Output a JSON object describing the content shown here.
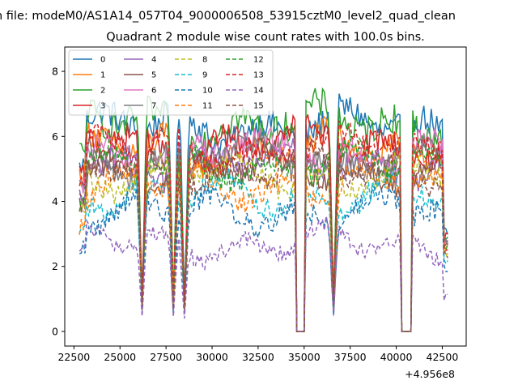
{
  "chart_data": {
    "type": "line",
    "title_line1": "n file: modeM0/AS1A14_057T04_9000006508_53915cztM0_level2_quad_clean",
    "title_line2": "Quadrant 2 module wise count rates with 100.0s bins.",
    "xlabel": "",
    "ylabel": "",
    "x_offset_label": "+4.956e8",
    "xlim": [
      22000,
      43800
    ],
    "ylim": [
      -0.45,
      8.75
    ],
    "x_ticks": [
      22500,
      25000,
      27500,
      30000,
      32500,
      35000,
      37500,
      40000,
      42500
    ],
    "y_ticks": [
      0,
      2,
      4,
      6,
      8
    ],
    "x_tick_labels": [
      "22500",
      "25000",
      "27500",
      "30000",
      "32500",
      "35000",
      "37500",
      "40000",
      "42500"
    ],
    "y_tick_labels": [
      "0",
      "2",
      "4",
      "6",
      "8"
    ],
    "legend_position": "upper-left",
    "legend_columns": 4,
    "x_start": 22800,
    "x_step": 100,
    "gap_intervals": [
      [
        34600,
        35000
      ],
      [
        40300,
        40800
      ]
    ],
    "dip_times": [
      26200,
      27900,
      28500,
      36600
    ],
    "series": [
      {
        "name": "0",
        "color": "#1f77b4",
        "style": "solid",
        "level": 6.3,
        "amplitude": 0.45
      },
      {
        "name": "1",
        "color": "#ff7f0e",
        "style": "solid",
        "level": 5.6,
        "amplitude": 0.45
      },
      {
        "name": "2",
        "color": "#2ca02c",
        "style": "solid",
        "level": 6.4,
        "amplitude": 0.5
      },
      {
        "name": "3",
        "color": "#d62728",
        "style": "solid",
        "level": 5.8,
        "amplitude": 0.4
      },
      {
        "name": "4",
        "color": "#9467bd",
        "style": "solid",
        "level": 5.2,
        "amplitude": 0.4
      },
      {
        "name": "5",
        "color": "#8c564b",
        "style": "solid",
        "level": 5.0,
        "amplitude": 0.4
      },
      {
        "name": "6",
        "color": "#e377c2",
        "style": "solid",
        "level": 5.5,
        "amplitude": 0.4
      },
      {
        "name": "7",
        "color": "#7f7f7f",
        "style": "solid",
        "level": 5.3,
        "amplitude": 0.4
      },
      {
        "name": "8",
        "color": "#bcbd22",
        "style": "dashed",
        "level": 4.8,
        "amplitude": 0.35
      },
      {
        "name": "9",
        "color": "#17becf",
        "style": "dashed",
        "level": 4.2,
        "amplitude": 0.35
      },
      {
        "name": "10",
        "color": "#1f77b4",
        "style": "dashed",
        "level": 3.7,
        "amplitude": 0.35
      },
      {
        "name": "11",
        "color": "#ff7f0e",
        "style": "dashed",
        "level": 4.5,
        "amplitude": 0.35
      },
      {
        "name": "12",
        "color": "#2ca02c",
        "style": "dashed",
        "level": 5.1,
        "amplitude": 0.35
      },
      {
        "name": "13",
        "color": "#d62728",
        "style": "dashed",
        "level": 5.6,
        "amplitude": 0.35
      },
      {
        "name": "14",
        "color": "#9467bd",
        "style": "dashed",
        "level": 2.7,
        "amplitude": 0.25
      },
      {
        "name": "15",
        "color": "#8c564b",
        "style": "dashed",
        "level": 5.0,
        "amplitude": 0.35
      }
    ]
  }
}
